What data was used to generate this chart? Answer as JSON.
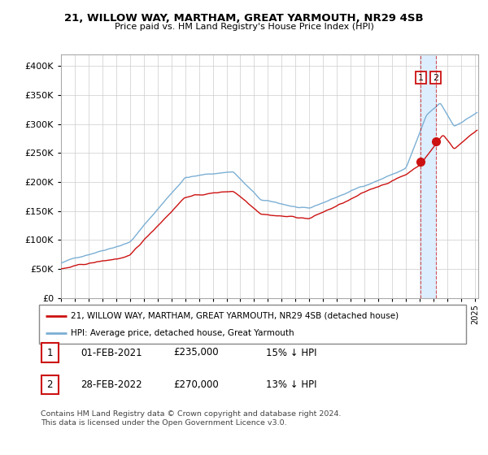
{
  "title_line1": "21, WILLOW WAY, MARTHAM, GREAT YARMOUTH, NR29 4SB",
  "title_line2": "Price paid vs. HM Land Registry's House Price Index (HPI)",
  "background_color": "#ffffff",
  "grid_color": "#cccccc",
  "hpi_color": "#7bafd4",
  "price_color": "#cc1111",
  "shade_color": "#ddeeff",
  "sale1_date_num": 2021.083,
  "sale1_price": 235000,
  "sale2_date_num": 2022.167,
  "sale2_price": 270000,
  "legend_label1": "21, WILLOW WAY, MARTHAM, GREAT YARMOUTH, NR29 4SB (detached house)",
  "legend_label2": "HPI: Average price, detached house, Great Yarmouth",
  "annotation1_label": "1",
  "annotation1_date": "01-FEB-2021",
  "annotation1_price": "£235,000",
  "annotation1_hpi": "15% ↓ HPI",
  "annotation2_label": "2",
  "annotation2_date": "28-FEB-2022",
  "annotation2_price": "£270,000",
  "annotation2_hpi": "13% ↓ HPI",
  "footer": "Contains HM Land Registry data © Crown copyright and database right 2024.\nThis data is licensed under the Open Government Licence v3.0.",
  "ylim_min": 0,
  "ylim_max": 420000,
  "xmin": 1995.0,
  "xmax": 2025.25
}
